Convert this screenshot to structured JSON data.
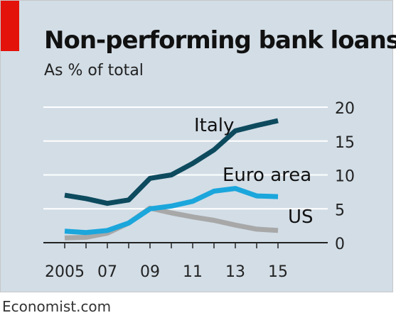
{
  "header": {
    "title": "Non-performing bank loans",
    "subtitle": "As % of total"
  },
  "footer": {
    "source": "Economist.com"
  },
  "colors": {
    "background": "#d2dde6",
    "accent_tag": "#e3120b",
    "gridline": "#ffffff",
    "baseline": "#222222"
  },
  "chart_data": {
    "type": "line",
    "title": "Non-performing bank loans",
    "subtitle": "As % of total",
    "x": [
      2005,
      2006,
      2007,
      2008,
      2009,
      2010,
      2011,
      2012,
      2013,
      2014,
      2015
    ],
    "x_tick_values": [
      2005,
      2007,
      2009,
      2011,
      2013,
      2015
    ],
    "x_tick_labels": [
      "2005",
      "07",
      "09",
      "11",
      "13",
      "15"
    ],
    "ylim": [
      0,
      20
    ],
    "y_ticks": [
      0,
      5,
      10,
      15,
      20
    ],
    "y_axis_side": "right",
    "grid": true,
    "legend": "inline labels",
    "series": [
      {
        "name": "Italy",
        "color": "#0d4a5e",
        "values": [
          7.0,
          6.5,
          5.8,
          6.3,
          9.5,
          10.0,
          11.7,
          13.7,
          16.5,
          17.3,
          18.0
        ]
      },
      {
        "name": "Euro area",
        "color": "#1ba6dc",
        "values": [
          1.7,
          1.5,
          1.8,
          2.9,
          5.0,
          5.4,
          6.1,
          7.6,
          8.0,
          6.9,
          6.8
        ]
      },
      {
        "name": "US",
        "color": "#a8a8a8",
        "values": [
          0.7,
          0.8,
          1.4,
          2.9,
          5.1,
          4.4,
          3.8,
          3.3,
          2.6,
          2.0,
          1.8
        ]
      }
    ]
  }
}
